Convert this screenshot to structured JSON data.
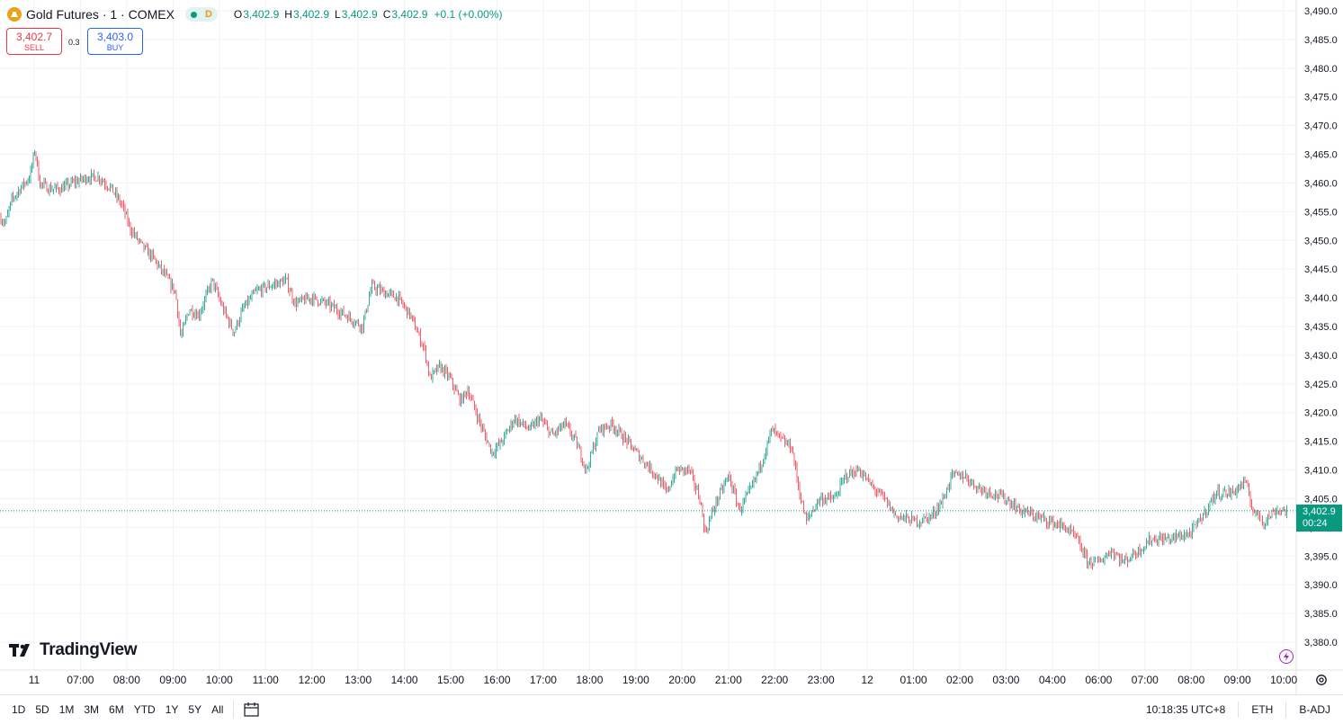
{
  "header": {
    "symbol_title": "Gold Futures · 1 · COMEX",
    "badge_letter": "D",
    "ohlc": [
      {
        "k": "O",
        "v": "3,402.9"
      },
      {
        "k": "H",
        "v": "3,402.9"
      },
      {
        "k": "L",
        "v": "3,402.9"
      },
      {
        "k": "C",
        "v": "3,402.9"
      },
      {
        "k": "",
        "v": "+0.1 (+0.00%)"
      }
    ]
  },
  "trade": {
    "sell_price": "3,402.7",
    "sell_label": "SELL",
    "spread": "0.3",
    "buy_price": "3,403.0",
    "buy_label": "BUY"
  },
  "brand": {
    "name": "TradingView"
  },
  "last_price": {
    "price": "3,402.9",
    "countdown": "00:24"
  },
  "bottom_bar": {
    "ranges": [
      "1D",
      "5D",
      "1M",
      "3M",
      "6M",
      "YTD",
      "1Y",
      "5Y",
      "All"
    ],
    "time": "10:18:35 UTC+8",
    "session": "ETH",
    "adjust": "B-ADJ"
  },
  "colors": {
    "up": "#089981",
    "down": "#f23645",
    "grid": "#f0f3fa",
    "axis_text": "#131722"
  },
  "chart_data": {
    "type": "candlestick",
    "title": "Gold Futures · 1 · COMEX",
    "y_ticks": [
      "3,380.0",
      "3,385.0",
      "3,390.0",
      "3,395.0",
      "3,400.0",
      "3,405.0",
      "3,410.0",
      "3,415.0",
      "3,420.0",
      "3,425.0",
      "3,430.0",
      "3,435.0",
      "3,440.0",
      "3,445.0",
      "3,450.0",
      "3,455.0",
      "3,460.0",
      "3,465.0",
      "3,470.0",
      "3,475.0",
      "3,480.0",
      "3,485.0",
      "3,490.0"
    ],
    "x_ticks": [
      "11",
      "07:00",
      "08:00",
      "09:00",
      "10:00",
      "11:00",
      "12:00",
      "13:00",
      "14:00",
      "15:00",
      "16:00",
      "17:00",
      "18:00",
      "19:00",
      "20:00",
      "21:00",
      "22:00",
      "23:00",
      "12",
      "01:00",
      "02:00",
      "03:00",
      "04:00",
      "06:00",
      "07:00",
      "08:00",
      "09:00",
      "10:00"
    ],
    "ylim": [
      3378,
      3492
    ],
    "y_scale": "linear",
    "grid": true,
    "last_price": 3402.9,
    "price_path": [
      [
        0,
        3454
      ],
      [
        6,
        3453
      ],
      [
        13,
        3457
      ],
      [
        22,
        3459
      ],
      [
        33,
        3461
      ],
      [
        39,
        3466
      ],
      [
        44,
        3460
      ],
      [
        55,
        3459
      ],
      [
        68,
        3459
      ],
      [
        80,
        3460
      ],
      [
        98,
        3461
      ],
      [
        110,
        3461
      ],
      [
        124,
        3459
      ],
      [
        136,
        3456
      ],
      [
        145,
        3452
      ],
      [
        158,
        3449
      ],
      [
        170,
        3447
      ],
      [
        183,
        3444
      ],
      [
        195,
        3441
      ],
      [
        201,
        3433
      ],
      [
        210,
        3438
      ],
      [
        221,
        3437
      ],
      [
        236,
        3443
      ],
      [
        248,
        3438
      ],
      [
        260,
        3434
      ],
      [
        270,
        3438
      ],
      [
        284,
        3441
      ],
      [
        298,
        3442
      ],
      [
        318,
        3443
      ],
      [
        328,
        3439
      ],
      [
        346,
        3440
      ],
      [
        363,
        3439
      ],
      [
        384,
        3437
      ],
      [
        403,
        3435
      ],
      [
        413,
        3442
      ],
      [
        426,
        3441
      ],
      [
        442,
        3440
      ],
      [
        456,
        3437
      ],
      [
        472,
        3431
      ],
      [
        478,
        3426
      ],
      [
        489,
        3428
      ],
      [
        500,
        3426
      ],
      [
        512,
        3422
      ],
      [
        520,
        3424
      ],
      [
        534,
        3418
      ],
      [
        547,
        3413
      ],
      [
        558,
        3415
      ],
      [
        572,
        3419
      ],
      [
        589,
        3417
      ],
      [
        600,
        3419
      ],
      [
        614,
        3416
      ],
      [
        628,
        3418
      ],
      [
        640,
        3415
      ],
      [
        652,
        3410
      ],
      [
        666,
        3417
      ],
      [
        680,
        3418
      ],
      [
        697,
        3415
      ],
      [
        713,
        3412
      ],
      [
        730,
        3409
      ],
      [
        741,
        3406
      ],
      [
        752,
        3410
      ],
      [
        766,
        3410
      ],
      [
        778,
        3405
      ],
      [
        784,
        3399
      ],
      [
        795,
        3404
      ],
      [
        810,
        3409
      ],
      [
        822,
        3403
      ],
      [
        836,
        3407
      ],
      [
        848,
        3412
      ],
      [
        858,
        3417
      ],
      [
        870,
        3415
      ],
      [
        880,
        3414
      ],
      [
        889,
        3406
      ],
      [
        896,
        3401
      ],
      [
        911,
        3405
      ],
      [
        928,
        3405
      ],
      [
        940,
        3409
      ],
      [
        955,
        3410
      ],
      [
        970,
        3407
      ],
      [
        983,
        3405
      ],
      [
        996,
        3402
      ],
      [
        1020,
        3401
      ],
      [
        1036,
        3402
      ],
      [
        1049,
        3405
      ],
      [
        1058,
        3409
      ],
      [
        1072,
        3409
      ],
      [
        1086,
        3407
      ],
      [
        1103,
        3406
      ],
      [
        1118,
        3405
      ],
      [
        1134,
        3403
      ],
      [
        1150,
        3402
      ],
      [
        1168,
        3401
      ],
      [
        1184,
        3400
      ],
      [
        1197,
        3398
      ],
      [
        1209,
        3394
      ],
      [
        1222,
        3394
      ],
      [
        1236,
        3396
      ],
      [
        1249,
        3394
      ],
      [
        1266,
        3396
      ],
      [
        1280,
        3398
      ],
      [
        1300,
        3398
      ],
      [
        1324,
        3399
      ],
      [
        1337,
        3402
      ],
      [
        1352,
        3406
      ],
      [
        1370,
        3406
      ],
      [
        1384,
        3408
      ],
      [
        1393,
        3403
      ],
      [
        1405,
        3401
      ],
      [
        1418,
        3403
      ],
      [
        1431,
        3402.9
      ]
    ]
  }
}
